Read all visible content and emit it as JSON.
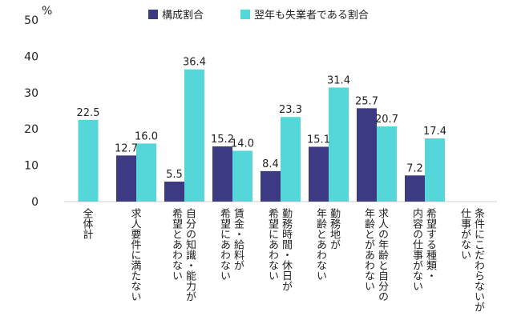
{
  "chart_data": {
    "type": "bar",
    "ylabel": "%",
    "ylim": [
      0,
      50
    ],
    "yticks": [
      0,
      10,
      20,
      30,
      40,
      50
    ],
    "grid": false,
    "legend_position": "top",
    "categories": [
      "全体計",
      "求人要件に満たない",
      "自分の知識・能力が希望とあわない",
      "賃金・給料が希望にあわない",
      "勤務時間・休日が希望にあわない",
      "勤務地が年齢とあわない",
      "求人の年齢と自分の年齢とがあわない",
      "希望する種類・内容の仕事がない",
      "条件にこだわらないが仕事がない"
    ],
    "category_label_lines": [
      [
        "全体計"
      ],
      [
        "求人要件に満たない"
      ],
      [
        "自分の知識・能力が",
        "希望とあわない"
      ],
      [
        "賃金・給料が",
        "希望にあわない"
      ],
      [
        "勤務時間・休日が",
        "希望にあわない"
      ],
      [
        "勤務地が",
        "年齢とあわない"
      ],
      [
        "求人の年齢と自分の",
        "年齢とがあわない"
      ],
      [
        "希望する種類・",
        "内容の仕事がない"
      ],
      [
        "条件にこだわらないが",
        "仕事がない"
      ]
    ],
    "series": [
      {
        "name": "構成割合",
        "color": "#3b3a82",
        "values": [
          null,
          12.7,
          5.5,
          15.2,
          8.4,
          15.1,
          25.7,
          7.2,
          null
        ]
      },
      {
        "name": "翌年も失業者である割合",
        "color": "#55d6d8",
        "values": [
          22.5,
          16.0,
          36.4,
          14.0,
          23.3,
          31.4,
          20.7,
          17.4,
          null
        ]
      }
    ]
  }
}
